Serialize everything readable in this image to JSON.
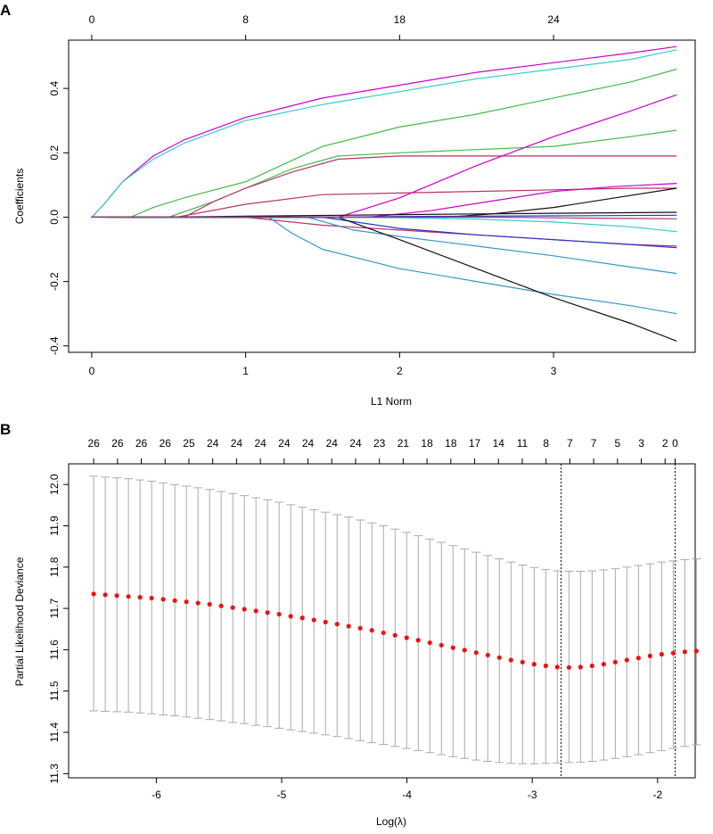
{
  "chart_data": [
    {
      "panel_label": "A",
      "type": "line",
      "title": "",
      "xlabel": "L1 Norm",
      "ylabel": "Coefficients",
      "xlim": [
        -0.15,
        3.92
      ],
      "ylim": [
        -0.42,
        0.55
      ],
      "x_ticks": [
        0,
        1,
        2,
        3
      ],
      "x_tick_labels": [
        "0",
        "1",
        "2",
        "3"
      ],
      "y_ticks": [
        -0.4,
        -0.2,
        0.0,
        0.2,
        0.4
      ],
      "y_tick_labels": [
        "-0.4",
        "-0.2",
        "0.0",
        "0.2",
        "0.4"
      ],
      "top_axis": {
        "positions": [
          0,
          1,
          2,
          3
        ],
        "labels": [
          "0",
          "8",
          "18",
          "24"
        ]
      },
      "series": [
        {
          "name": "v1",
          "color": "#cc00cc",
          "x": [
            0,
            0.08,
            0.2,
            0.4,
            0.6,
            1.0,
            1.5,
            2.0,
            2.5,
            3.0,
            3.5,
            3.8
          ],
          "y": [
            0,
            0.04,
            0.11,
            0.19,
            0.24,
            0.31,
            0.37,
            0.41,
            0.45,
            0.48,
            0.51,
            0.53
          ]
        },
        {
          "name": "v2",
          "color": "#33cccc",
          "x": [
            0,
            0.08,
            0.2,
            0.4,
            0.6,
            1.0,
            1.5,
            2.0,
            2.5,
            3.0,
            3.5,
            3.8
          ],
          "y": [
            0,
            0.04,
            0.11,
            0.18,
            0.23,
            0.3,
            0.35,
            0.39,
            0.43,
            0.46,
            0.49,
            0.52
          ]
        },
        {
          "name": "v3",
          "color": "#44bb44",
          "x": [
            0.25,
            0.4,
            0.6,
            1.0,
            1.5,
            2.0,
            2.5,
            3.0,
            3.5,
            3.8
          ],
          "y": [
            0,
            0.03,
            0.06,
            0.11,
            0.22,
            0.28,
            0.32,
            0.37,
            0.42,
            0.46
          ]
        },
        {
          "name": "v4",
          "color": "#44bb44",
          "x": [
            0.5,
            0.8,
            1.0,
            1.3,
            1.6,
            2.0,
            2.5,
            3.0,
            3.5,
            3.8
          ],
          "y": [
            0,
            0.05,
            0.09,
            0.15,
            0.19,
            0.2,
            0.21,
            0.22,
            0.25,
            0.27
          ]
        },
        {
          "name": "v5",
          "color": "#bb3366",
          "x": [
            0.6,
            0.8,
            1.0,
            1.3,
            1.6,
            2.0,
            2.5,
            3.0,
            3.5,
            3.8
          ],
          "y": [
            0,
            0.05,
            0.09,
            0.14,
            0.18,
            0.19,
            0.19,
            0.19,
            0.19,
            0.19
          ]
        },
        {
          "name": "v6",
          "color": "#bb3366",
          "x": [
            0.55,
            1.0,
            1.5,
            2.0,
            2.5,
            3.0,
            3.5,
            3.8
          ],
          "y": [
            0,
            0.04,
            0.07,
            0.075,
            0.08,
            0.085,
            0.09,
            0.09
          ]
        },
        {
          "name": "v7",
          "color": "#cc00cc",
          "x": [
            1.6,
            2.0,
            2.5,
            3.0,
            3.5,
            3.8
          ],
          "y": [
            0,
            0.06,
            0.16,
            0.25,
            0.33,
            0.38
          ]
        },
        {
          "name": "v8",
          "color": "#cc00cc",
          "x": [
            1.8,
            2.2,
            2.6,
            3.0,
            3.4,
            3.8
          ],
          "y": [
            0,
            0.02,
            0.05,
            0.08,
            0.095,
            0.105
          ]
        },
        {
          "name": "v9",
          "color": "#111111",
          "x": [
            2.3,
            2.6,
            3.0,
            3.4,
            3.8
          ],
          "y": [
            0,
            0.01,
            0.03,
            0.06,
            0.09
          ]
        },
        {
          "name": "v10",
          "color": "#111111",
          "x": [
            0.4,
            1.0,
            2.0,
            3.0,
            3.8
          ],
          "y": [
            0,
            0.003,
            0.008,
            0.012,
            0.015
          ]
        },
        {
          "name": "v11",
          "color": "#2233cc",
          "x": [
            1.5,
            2.0,
            3.0,
            3.8
          ],
          "y": [
            0,
            0.002,
            0.004,
            0.006
          ]
        },
        {
          "name": "v12",
          "color": "#33cccc",
          "x": [
            1.5,
            2.0,
            2.5,
            3.0,
            3.5,
            3.8
          ],
          "y": [
            0,
            -0.002,
            -0.006,
            -0.015,
            -0.03,
            -0.045
          ]
        },
        {
          "name": "v13",
          "color": "#bb3366",
          "x": [
            1.0,
            1.5,
            2.0,
            2.5,
            3.0,
            3.5,
            3.8
          ],
          "y": [
            0,
            -0.025,
            -0.04,
            -0.055,
            -0.07,
            -0.085,
            -0.09
          ]
        },
        {
          "name": "v14",
          "color": "#2233cc",
          "x": [
            1.5,
            2.0,
            2.5,
            3.0,
            3.5,
            3.8
          ],
          "y": [
            0,
            -0.035,
            -0.055,
            -0.07,
            -0.085,
            -0.095
          ]
        },
        {
          "name": "v15",
          "color": "#3399cc",
          "x": [
            1.4,
            1.7,
            2.0,
            2.5,
            3.0,
            3.5,
            3.8
          ],
          "y": [
            0,
            -0.04,
            -0.06,
            -0.09,
            -0.12,
            -0.155,
            -0.175
          ]
        },
        {
          "name": "v16",
          "color": "#3399cc",
          "x": [
            1.15,
            1.3,
            1.5,
            2.0,
            2.5,
            3.0,
            3.5,
            3.8
          ],
          "y": [
            0,
            -0.05,
            -0.1,
            -0.16,
            -0.2,
            -0.24,
            -0.275,
            -0.3
          ]
        },
        {
          "name": "v17",
          "color": "#111111",
          "x": [
            1.6,
            2.0,
            2.5,
            3.0,
            3.5,
            3.8
          ],
          "y": [
            0,
            -0.07,
            -0.16,
            -0.25,
            -0.33,
            -0.385
          ]
        },
        {
          "name": "v18",
          "color": "#bb3366",
          "x": [
            2.6,
            3.0,
            3.5,
            3.8
          ],
          "y": [
            0,
            -0.002,
            -0.004,
            -0.005
          ]
        }
      ]
    },
    {
      "panel_label": "B",
      "type": "scatter",
      "title": "",
      "xlabel": "Log(λ)",
      "ylabel": "Partial Likelihood Deviance",
      "xlim": [
        -6.7,
        -1.7
      ],
      "ylim": [
        11.29,
        12.05
      ],
      "x_ticks": [
        -6,
        -5,
        -4,
        -3,
        -2
      ],
      "x_tick_labels": [
        "-6",
        "-5",
        "-4",
        "-3",
        "-2"
      ],
      "y_ticks": [
        11.3,
        11.4,
        11.5,
        11.6,
        11.7,
        11.8,
        11.9,
        12.0
      ],
      "y_tick_labels": [
        "11.3",
        "11.4",
        "11.5",
        "11.6",
        "11.7",
        "11.8",
        "11.9",
        "12.0"
      ],
      "top_axis": {
        "positions": [
          -6.5,
          -6.31,
          -6.12,
          -5.93,
          -5.74,
          -5.55,
          -5.36,
          -5.17,
          -4.98,
          -4.79,
          -4.6,
          -4.41,
          -4.22,
          -4.03,
          -3.84,
          -3.65,
          -3.46,
          -3.27,
          -3.08,
          -2.89,
          -2.7,
          -2.51,
          -2.32,
          -2.13,
          -1.94
        ],
        "labels": [
          "26",
          "26",
          "26",
          "26",
          "25",
          "24",
          "24",
          "24",
          "24",
          "24",
          "24",
          "24",
          "23",
          "21",
          "18",
          "18",
          "17",
          "14",
          "11",
          "8",
          "7",
          "7",
          "5",
          "3",
          "2"
        ]
      },
      "top_axis_end_label": "0",
      "vlines": [
        -2.77,
        -1.86
      ],
      "point_color": "#ee1111",
      "errorbar_color": "#aaaaaa",
      "x_start": -6.5,
      "x_step": 0.0925,
      "mean": [
        11.735,
        11.733,
        11.731,
        11.729,
        11.727,
        11.725,
        11.722,
        11.719,
        11.716,
        11.713,
        11.71,
        11.706,
        11.702,
        11.698,
        11.694,
        11.69,
        11.686,
        11.681,
        11.677,
        11.672,
        11.667,
        11.662,
        11.657,
        11.652,
        11.647,
        11.641,
        11.635,
        11.629,
        11.623,
        11.617,
        11.611,
        11.605,
        11.599,
        11.593,
        11.587,
        11.581,
        11.575,
        11.57,
        11.565,
        11.561,
        11.558,
        11.557,
        11.558,
        11.561,
        11.565,
        11.57,
        11.575,
        11.58,
        11.585,
        11.589,
        11.592,
        11.595,
        11.597
      ],
      "lower": [
        11.452,
        11.451,
        11.45,
        11.449,
        11.447,
        11.445,
        11.442,
        11.44,
        11.437,
        11.434,
        11.431,
        11.428,
        11.424,
        11.421,
        11.417,
        11.414,
        11.41,
        11.406,
        11.402,
        11.398,
        11.394,
        11.39,
        11.385,
        11.38,
        11.375,
        11.371,
        11.366,
        11.361,
        11.356,
        11.351,
        11.346,
        11.341,
        11.337,
        11.333,
        11.33,
        11.327,
        11.325,
        11.324,
        11.324,
        11.325,
        11.326,
        11.327,
        11.328,
        11.33,
        11.333,
        11.337,
        11.341,
        11.346,
        11.351,
        11.356,
        11.361,
        11.366,
        11.37
      ],
      "upper": [
        12.02,
        12.018,
        12.016,
        12.014,
        12.011,
        12.008,
        12.004,
        12.0,
        11.996,
        11.992,
        11.988,
        11.983,
        11.978,
        11.973,
        11.968,
        11.963,
        11.957,
        11.951,
        11.945,
        11.939,
        11.933,
        11.927,
        11.921,
        11.914,
        11.907,
        11.9,
        11.892,
        11.884,
        11.876,
        11.868,
        11.86,
        11.852,
        11.844,
        11.836,
        11.828,
        11.82,
        11.812,
        11.805,
        11.799,
        11.794,
        11.791,
        11.79,
        11.79,
        11.791,
        11.793,
        11.796,
        11.8,
        11.804,
        11.808,
        11.812,
        11.815,
        11.818,
        11.82
      ]
    }
  ]
}
